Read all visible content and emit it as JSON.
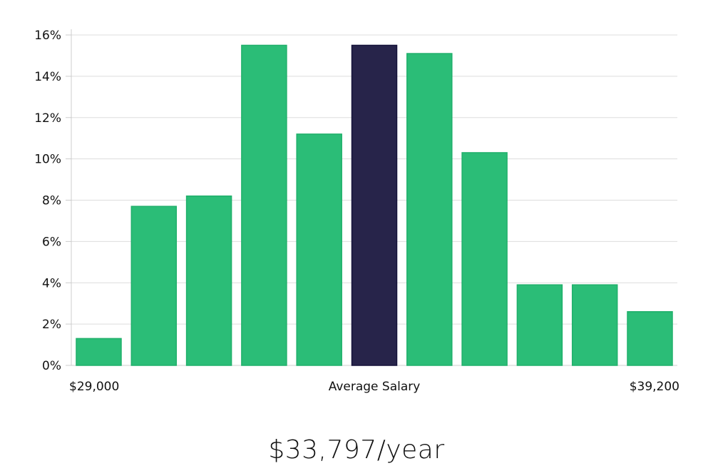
{
  "colors": {
    "bar": "#2bbd77",
    "bar_stroke": "#20b06b",
    "highlight": "#27244a",
    "highlight_stroke": "#15123a",
    "grid": "#dddddd",
    "axis": "#cccccc"
  },
  "chart_data": {
    "type": "bar",
    "title": "",
    "ylabel": "",
    "xlabel": "Average Salary",
    "x_start_label": "$29,000",
    "x_end_label": "$39,200",
    "ylim": [
      0,
      16
    ],
    "yticks": [
      0,
      2,
      4,
      6,
      8,
      10,
      12,
      14,
      16
    ],
    "ytick_labels": [
      "0%",
      "2%",
      "4%",
      "6%",
      "8%",
      "10%",
      "12%",
      "14%",
      "16%"
    ],
    "values": [
      1.3,
      7.7,
      8.2,
      15.5,
      11.2,
      15.5,
      15.1,
      10.3,
      3.9,
      3.9,
      2.6
    ],
    "highlight_index": 5,
    "grid": true
  },
  "summary": {
    "average_salary": "$33,797/year"
  }
}
